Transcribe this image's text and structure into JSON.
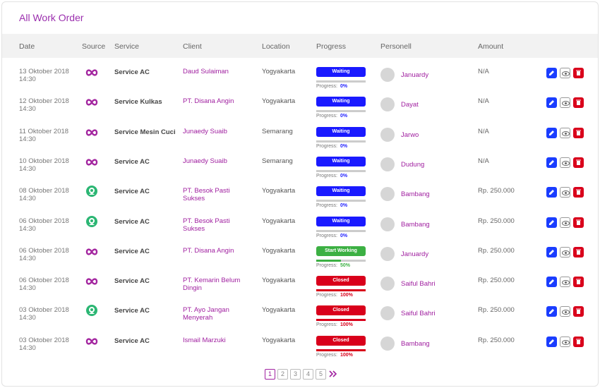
{
  "header": {
    "title": "All Work Order"
  },
  "columns": [
    "Date",
    "Source",
    "Service",
    "Client",
    "Location",
    "Progress",
    "Personell",
    "Amount"
  ],
  "labels": {
    "progress": "Progress:"
  },
  "rows": [
    {
      "date": "13 Oktober 2018",
      "time": "14:30",
      "source_color": "#a3259f",
      "service": "Service AC",
      "client": "Daud Sulaiman",
      "location": "Yogyakarta",
      "status": "Waiting",
      "status_color": "#1a1aff",
      "progress": "0%",
      "personell": "Januardy",
      "amount": "N/A"
    },
    {
      "date": "12 Oktober 2018",
      "time": "14:30",
      "source_color": "#a3259f",
      "service": "Service Kulkas",
      "client": "PT. Disana Angin",
      "location": "Yogyakarta",
      "status": "Waiting",
      "status_color": "#1a1aff",
      "progress": "0%",
      "personell": "Dayat",
      "amount": "N/A"
    },
    {
      "date": "11 Oktober 2018",
      "time": "14:30",
      "source_color": "#a3259f",
      "service": "Service Mesin Cuci",
      "client": "Junaedy Suaib",
      "location": "Semarang",
      "status": "Waiting",
      "status_color": "#1a1aff",
      "progress": "0%",
      "personell": "Jarwo",
      "amount": "N/A"
    },
    {
      "date": "10 Oktober 2018",
      "time": "14:30",
      "source_color": "#a3259f",
      "service": "Service AC",
      "client": "Junaedy Suaib",
      "location": "Semarang",
      "status": "Waiting",
      "status_color": "#1a1aff",
      "progress": "0%",
      "personell": "Dudung",
      "amount": "N/A"
    },
    {
      "date": "08 Oktober 2018",
      "time": "14:30",
      "source_color": "#2bb673",
      "service": "Service AC",
      "client": "PT. Besok Pasti Sukses",
      "location": "Yogyakarta",
      "status": "Waiting",
      "status_color": "#1a1aff",
      "progress": "0%",
      "personell": "Bambang",
      "amount": "Rp. 250.000"
    },
    {
      "date": "06 Oktober 2018",
      "time": "14:30",
      "source_color": "#2bb673",
      "service": "Service AC",
      "client": "PT. Besok Pasti Sukses",
      "location": "Yogyakarta",
      "status": "Waiting",
      "status_color": "#1a1aff",
      "progress": "0%",
      "personell": "Bambang",
      "amount": "Rp. 250.000"
    },
    {
      "date": "06 Oktober 2018",
      "time": "14:30",
      "source_color": "#a3259f",
      "service": "Service AC",
      "client": "PT. Disana Angin",
      "location": "Yogyakarta",
      "status": "Start Working",
      "status_color": "#3cb043",
      "progress": "50%",
      "personell": "Januardy",
      "amount": "Rp. 250.000"
    },
    {
      "date": "06 Oktober 2018",
      "time": "14:30",
      "source_color": "#a3259f",
      "service": "Service AC",
      "client": "PT. Kemarin Belum Dingin",
      "location": "Yogyakarta",
      "status": "Closed",
      "status_color": "#d9001b",
      "progress": "100%",
      "personell": "Saiful Bahri",
      "amount": "Rp. 250.000"
    },
    {
      "date": "03 Oktober 2018",
      "time": "14:30",
      "source_color": "#2bb673",
      "service": "Service AC",
      "client": "PT. Ayo Jangan Menyerah",
      "location": "Yogyakarta",
      "status": "Closed",
      "status_color": "#d9001b",
      "progress": "100%",
      "personell": "Saiful Bahri",
      "amount": "Rp. 250.000"
    },
    {
      "date": "03 Oktober 2018",
      "time": "14:30",
      "source_color": "#a3259f",
      "service": "Service AC",
      "client": "Ismail Marzuki",
      "location": "Yogyakarta",
      "status": "Closed",
      "status_color": "#d9001b",
      "progress": "100%",
      "personell": "Bambang",
      "amount": "Rp. 250.000"
    }
  ],
  "pagination": {
    "pages": [
      "1",
      "2",
      "3",
      "4",
      "5"
    ]
  }
}
